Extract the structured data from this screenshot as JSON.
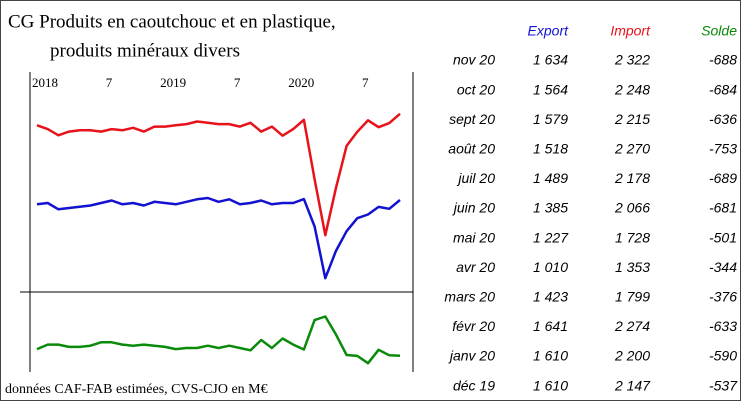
{
  "chart_data": {
    "type": "line",
    "title": [
      "CG Produits en caoutchouc et en plastique,",
      "produits minéraux divers"
    ],
    "categories": [
      "2018",
      null,
      null,
      null,
      null,
      null,
      "7",
      null,
      null,
      null,
      null,
      null,
      "2019",
      null,
      null,
      null,
      null,
      null,
      "7",
      null,
      null,
      null,
      null,
      null,
      "2020",
      null,
      null,
      null,
      null,
      null,
      "7",
      null,
      null,
      null,
      null
    ],
    "ylim": [
      900,
      2400
    ],
    "y2lim": [
      -900,
      -200
    ],
    "series": [
      {
        "name": "Import",
        "color": "#e8121a",
        "values": [
          2230,
          2200,
          2150,
          2180,
          2190,
          2190,
          2180,
          2200,
          2190,
          2210,
          2180,
          2220,
          2220,
          2230,
          2240,
          2260,
          2250,
          2240,
          2240,
          2220,
          2250,
          2180,
          2220,
          2147,
          2200,
          2274,
          1799,
          1353,
          1728,
          2066,
          2178,
          2270,
          2215,
          2248,
          2322
        ]
      },
      {
        "name": "Export",
        "color": "#1212d0",
        "values": [
          1600,
          1610,
          1560,
          1570,
          1580,
          1590,
          1610,
          1630,
          1600,
          1610,
          1590,
          1620,
          1610,
          1600,
          1620,
          1640,
          1650,
          1620,
          1640,
          1600,
          1610,
          1630,
          1600,
          1610,
          1610,
          1641,
          1423,
          1010,
          1227,
          1385,
          1489,
          1518,
          1579,
          1564,
          1634
        ]
      },
      {
        "name": "Solde",
        "color": "#0a8a0a",
        "axis": "y2",
        "values": [
          -630,
          -590,
          -590,
          -610,
          -610,
          -600,
          -570,
          -570,
          -590,
          -600,
          -590,
          -600,
          -610,
          -630,
          -620,
          -620,
          -600,
          -620,
          -600,
          -620,
          -640,
          -550,
          -620,
          -537,
          -590,
          -633,
          -376,
          -344,
          -501,
          -681,
          -689,
          -753,
          -636,
          -684,
          -688
        ]
      }
    ]
  },
  "table": {
    "columns": [
      {
        "text": "Export",
        "color": "#1212d0"
      },
      {
        "text": "Import",
        "color": "#e8121a"
      },
      {
        "text": "Solde",
        "color": "#0a8a0a"
      }
    ],
    "rows": [
      {
        "label": "nov 20",
        "cells": [
          "1 634",
          "2 322",
          "-688"
        ]
      },
      {
        "label": "oct 20",
        "cells": [
          "1 564",
          "2 248",
          "-684"
        ]
      },
      {
        "label": "sept 20",
        "cells": [
          "1 579",
          "2 215",
          "-636"
        ]
      },
      {
        "label": "août 20",
        "cells": [
          "1 518",
          "2 270",
          "-753"
        ]
      },
      {
        "label": "juil 20",
        "cells": [
          "1 489",
          "2 178",
          "-689"
        ]
      },
      {
        "label": "juin 20",
        "cells": [
          "1 385",
          "2 066",
          "-681"
        ]
      },
      {
        "label": "mai 20",
        "cells": [
          "1 227",
          "1 728",
          "-501"
        ]
      },
      {
        "label": "avr 20",
        "cells": [
          "1 010",
          "1 353",
          "-344"
        ]
      },
      {
        "label": "mars 20",
        "cells": [
          "1 423",
          "1 799",
          "-376"
        ]
      },
      {
        "label": "févr 20",
        "cells": [
          "1 641",
          "2 274",
          "-633"
        ]
      },
      {
        "label": "janv 20",
        "cells": [
          "1 610",
          "2 200",
          "-590"
        ]
      },
      {
        "label": "déc 19",
        "cells": [
          "1 610",
          "2 147",
          "-537"
        ]
      }
    ]
  },
  "footnote": "données CAF-FAB estimées, CVS-CJO en M€"
}
